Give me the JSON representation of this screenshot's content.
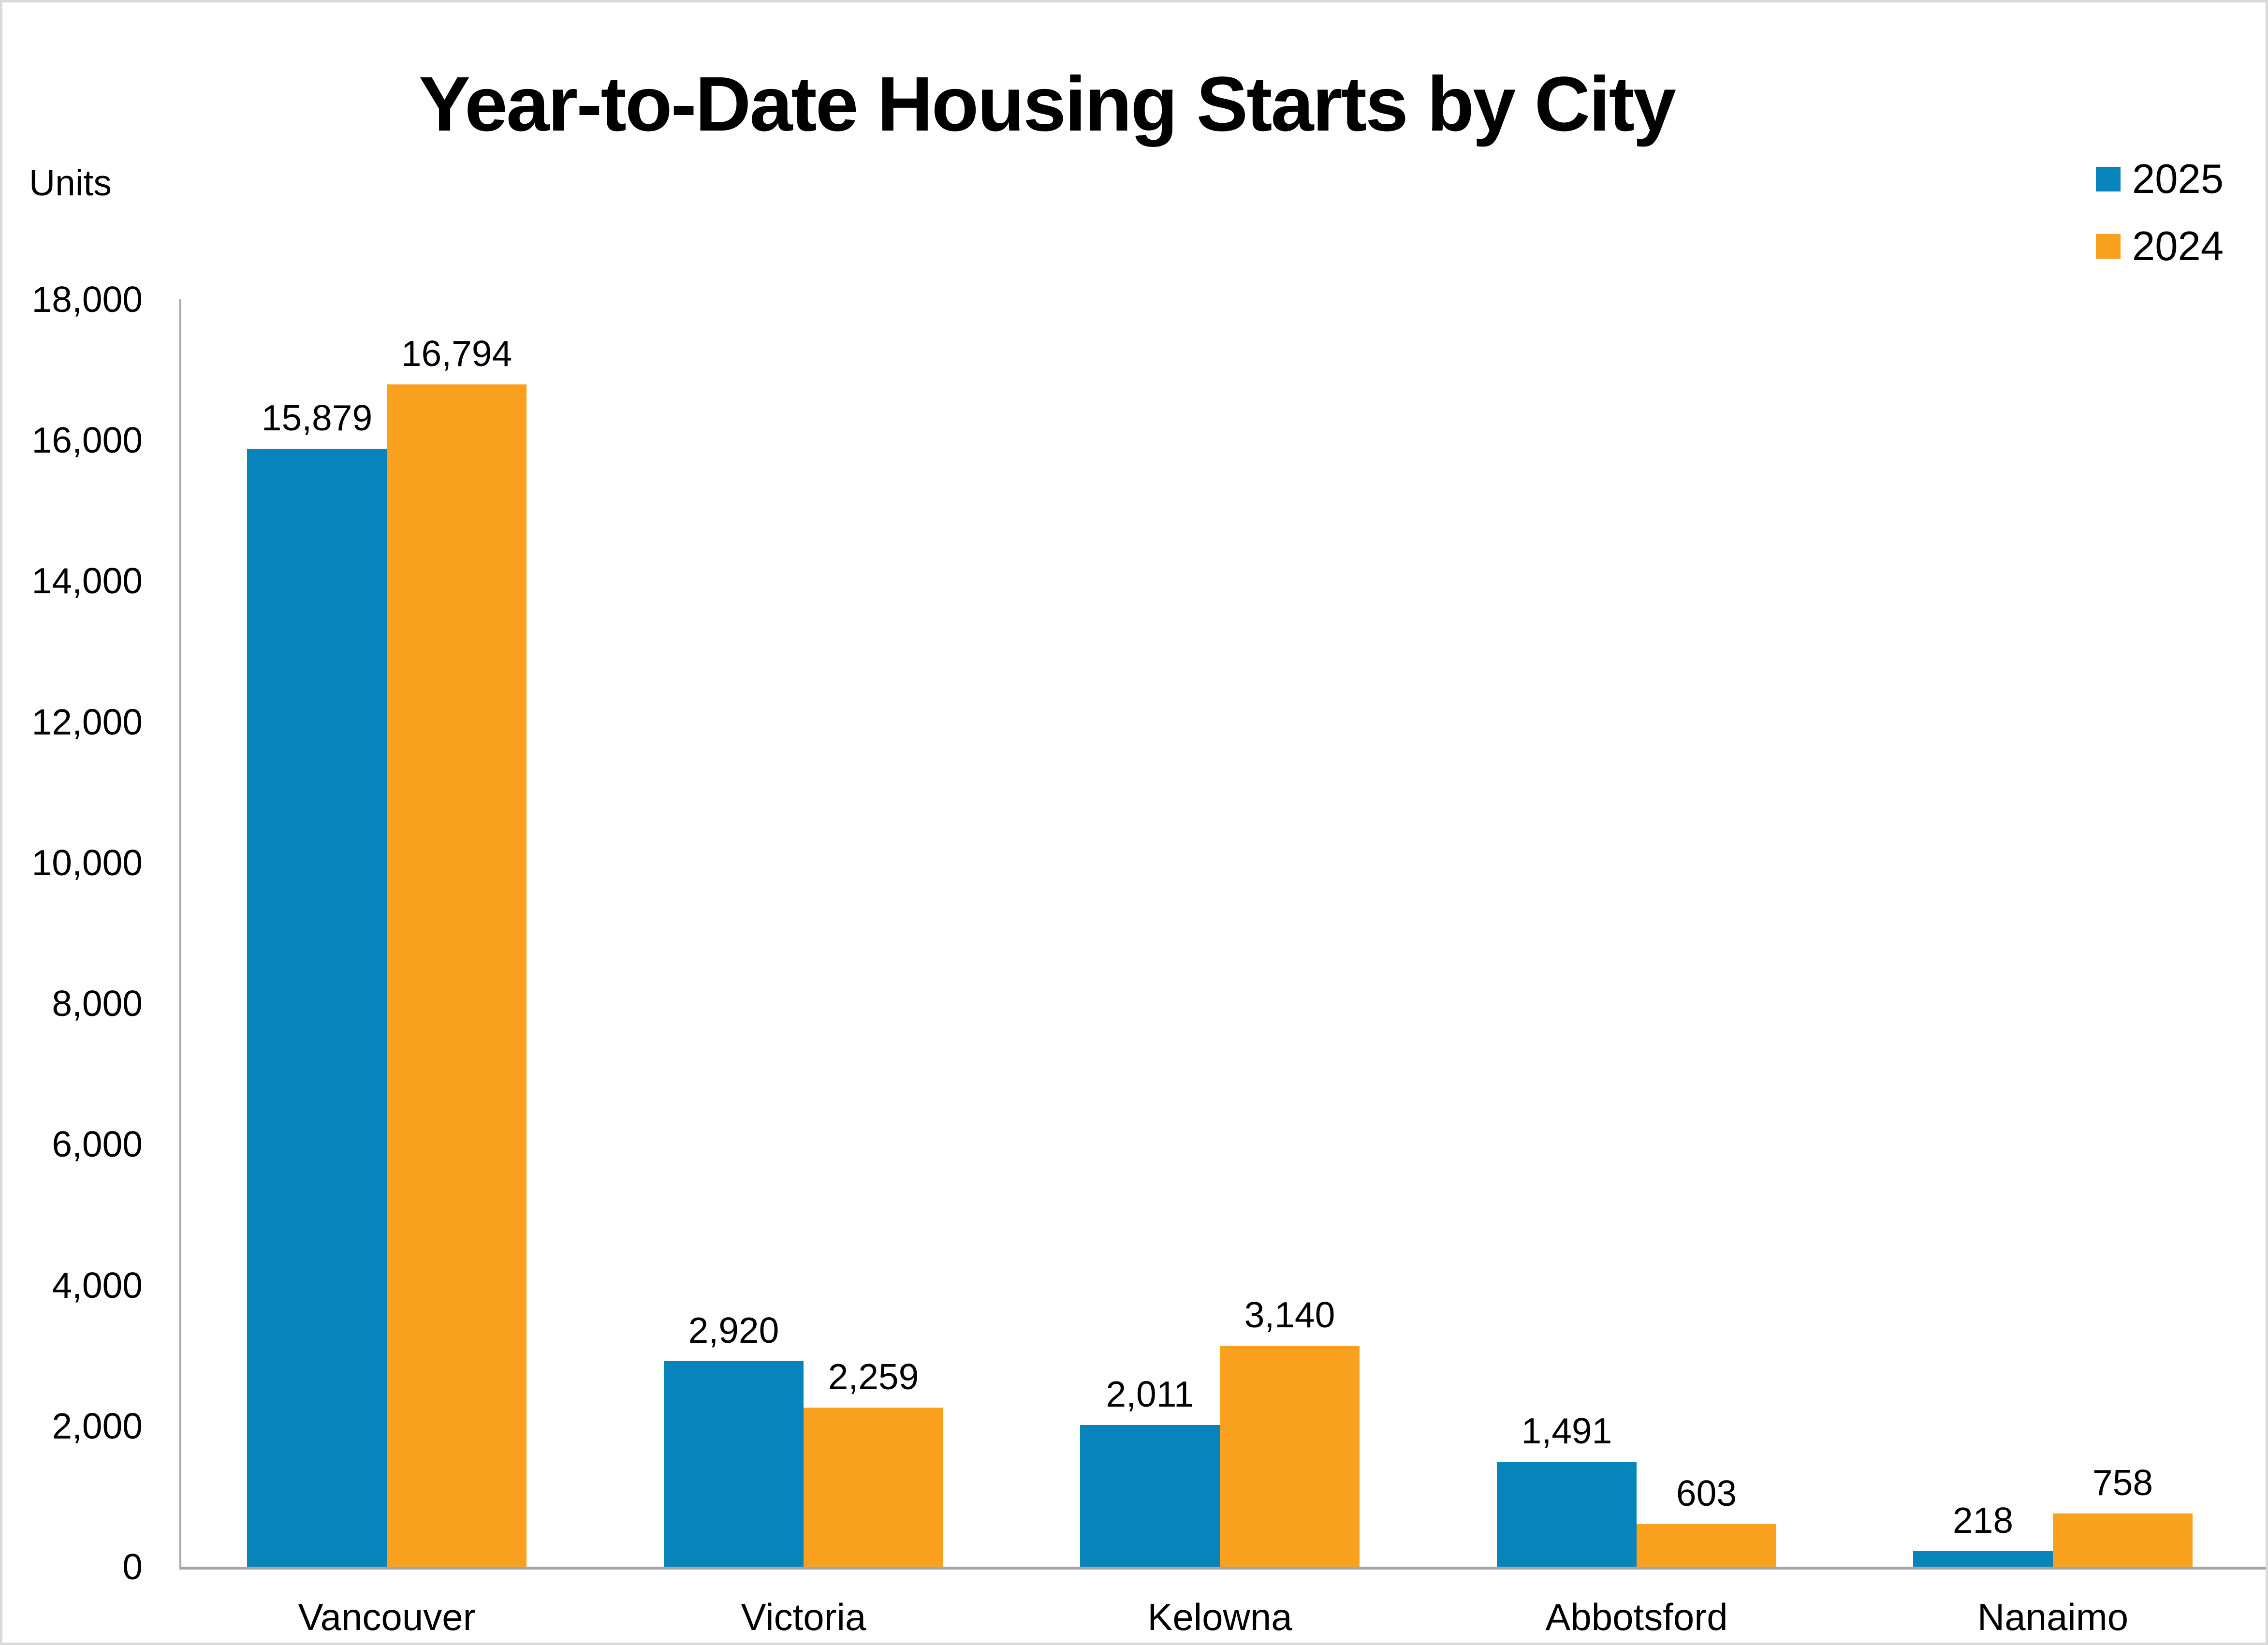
{
  "page": {
    "border_color": "#D9D9D9",
    "background_color": "#FFFFFF"
  },
  "chart_data": {
    "type": "bar",
    "title": "Year-to-Date Housing Starts by City",
    "ylabel": "Units",
    "xlabel": "",
    "categories": [
      "Vancouver",
      "Victoria",
      "Kelowna",
      "Abbotsford",
      "Nanaimo"
    ],
    "series": [
      {
        "name": "2025",
        "color": "#0884BC",
        "values": [
          15879,
          2920,
          2011,
          1491,
          218
        ],
        "labels": [
          "15,879",
          "2,920",
          "2,011",
          "1,491",
          "218"
        ]
      },
      {
        "name": "2024",
        "color": "#F9A11F",
        "values": [
          16794,
          2259,
          3140,
          603,
          758
        ],
        "labels": [
          "16,794",
          "2,259",
          "3,140",
          "603",
          "758"
        ]
      }
    ],
    "ylim": [
      0,
      18000
    ],
    "ytick_step": 2000,
    "ytick_labels": [
      "0",
      "2,000",
      "4,000",
      "6,000",
      "8,000",
      "10,000",
      "12,000",
      "14,000",
      "16,000",
      "18,000"
    ],
    "grid": false,
    "legend_position": "top-right",
    "axis_color": "#A6A6A6",
    "text_color": "#000000"
  }
}
